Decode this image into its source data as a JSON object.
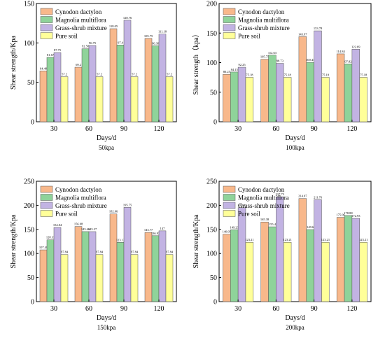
{
  "colors": {
    "Cynodon dactylon": "#F8B88B",
    "Magnolia multiflora": "#8FD39A",
    "Grass-shrub mixture": "#C2B3E3",
    "Pure soil": "#FFFF99"
  },
  "chart_data": [
    {
      "type": "bar",
      "title": "50kpa",
      "xlabel": "Days/d",
      "ylabel": "Shear strength/Kpa",
      "ylim": [
        0,
        150
      ],
      "yticks": [
        0,
        50,
        100,
        150
      ],
      "legend": "top-left",
      "categories": [
        "30",
        "60",
        "90",
        "120"
      ],
      "series": [
        {
          "name": "Cynodon dactylon",
          "values": [
            64.48,
            69.2,
            118.05,
            105.75
          ],
          "labels": [
            "64.48",
            "69.2",
            "118.05",
            "105.75"
          ]
        },
        {
          "name": "Magnolia multiflora",
          "values": [
            81.67,
            92.58,
            97.4,
            96.38
          ],
          "labels": [
            "81.67",
            "92.58",
            "97.4",
            "96.38"
          ]
        },
        {
          "name": "Grass-shrub mixture",
          "values": [
            87.75,
            96.75,
            128.76,
            111.18
          ],
          "labels": [
            "87.75",
            "96.75",
            "128.76",
            "111.18"
          ]
        },
        {
          "name": "Pure soil",
          "values": [
            57.2,
            57.2,
            57.2,
            57.2
          ],
          "labels": [
            "57.2",
            "57.2",
            "57.2",
            "57.2"
          ]
        }
      ]
    },
    {
      "type": "bar",
      "title": "100kpa",
      "xlabel": "Days/d",
      "ylabel": "Shear strength（kpa）",
      "ylim": [
        0,
        200
      ],
      "yticks": [
        0,
        50,
        100,
        150,
        200
      ],
      "legend": "top-left",
      "categories": [
        "30",
        "60",
        "90",
        "120"
      ],
      "series": [
        {
          "name": "Cynodon dactylon",
          "values": [
            80.25,
            105.75,
            143.97,
            114.84
          ],
          "labels": [
            "80.25",
            "105.75",
            "143.97",
            "114.84"
          ]
        },
        {
          "name": "Magnolia multiflora",
          "values": [
            84.15,
            112.63,
            100.43,
            97.82
          ],
          "labels": [
            "84.15",
            "112.63",
            "100.43",
            "97.82"
          ]
        },
        {
          "name": "Grass-shrub mixture",
          "values": [
            92.25,
            98.73,
            153.78,
            122.69
          ],
          "labels": [
            "92.25",
            "98.73",
            "153.78",
            "122.69"
          ]
        },
        {
          "name": "Pure soil",
          "values": [
            75.18,
            75.18,
            75.18,
            75.18
          ],
          "labels": [
            "75.18",
            "75.18",
            "75.18",
            "75.18"
          ]
        }
      ]
    },
    {
      "type": "bar",
      "title": "150kpa",
      "xlabel": "Days/d",
      "ylabel": "Shear strength/Kpa",
      "ylim": [
        0,
        250
      ],
      "yticks": [
        0,
        50,
        100,
        150,
        200,
        250
      ],
      "legend": "top-left",
      "categories": [
        "30",
        "60",
        "90",
        "120"
      ],
      "series": [
        {
          "name": "Cynodon dactylon",
          "values": [
            107.48,
            156.08,
            182.06,
            143.77
          ],
          "labels": [
            "107.48",
            "156.08",
            "182.06",
            "143.77"
          ]
        },
        {
          "name": "Magnolia multiflora",
          "values": [
            128.33,
            145.46,
            123.12,
            136.92
          ],
          "labels": [
            "128.33",
            "145.46",
            "123.12",
            "136.92"
          ]
        },
        {
          "name": "Grass-shrub mixture",
          "values": [
            154.04,
            145.37,
            195.75,
            147
          ],
          "labels": [
            "154.04",
            "145.37",
            "195.75",
            "147"
          ]
        },
        {
          "name": "Pure soil",
          "values": [
            97.84,
            97.84,
            97.84,
            97.84
          ],
          "labels": [
            "97.84",
            "97.84",
            "97.84",
            "97.84"
          ]
        }
      ]
    },
    {
      "type": "bar",
      "title": "200kpa",
      "xlabel": "Days/d",
      "ylabel": "Shear strength/Kpa",
      "ylim": [
        0,
        250
      ],
      "yticks": [
        0,
        50,
        100,
        150,
        200,
        250
      ],
      "legend": "top-left",
      "categories": [
        "30",
        "60",
        "90",
        "120"
      ],
      "series": [
        {
          "name": "Cynodon dactylon",
          "values": [
            140.05,
            165.38,
            214.07,
            175.06
          ],
          "labels": [
            "140.05",
            "165.38",
            "214.07",
            "175.06"
          ]
        },
        {
          "name": "Magnolia multiflora",
          "values": [
            149.23,
            155.4,
            149.6,
            178.88
          ],
          "labels": [
            "149.23",
            "155.4",
            "149.6",
            "178.88"
          ]
        },
        {
          "name": "Grass-shrub mixture",
          "values": [
            195.1,
            217.73,
            211.76,
            172.93
          ],
          "labels": [
            "195.1",
            "217.73",
            "211.76",
            "172.93"
          ]
        },
        {
          "name": "Pure soil",
          "values": [
            123.21,
            123.21,
            123.21,
            123.21
          ],
          "labels": [
            "123.21",
            "123.21",
            "123.21",
            "123.21"
          ]
        }
      ]
    }
  ]
}
